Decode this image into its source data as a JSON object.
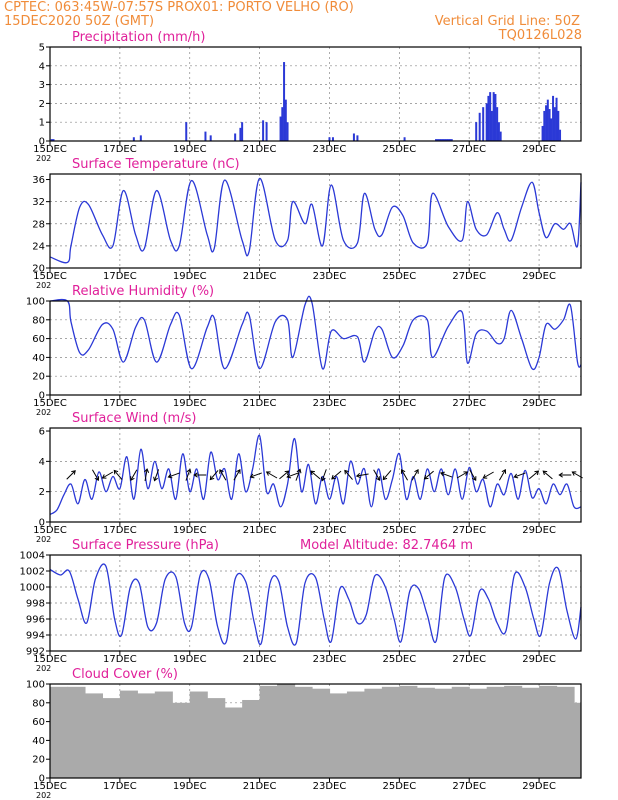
{
  "header": {
    "line1_left": "CPTEC:   063:45W-07:57S   PROX01: PORTO VELHO (RO)",
    "line2_left": "15DEC2020 50Z (GMT)",
    "line2_right": "Vertical Grid Line: 50Z",
    "line3_right": "TQ0126L028"
  },
  "colors": {
    "header": "#f08c3a",
    "title": "#e0209a",
    "line": "#2b39d6",
    "cloud": "#aaaaaa",
    "grid": "#888888"
  },
  "x_axis": {
    "tick_labels": [
      "15DEC",
      "17DEC",
      "19DEC",
      "21DEC",
      "23DEC",
      "25DEC",
      "27DEC",
      "29DEC"
    ],
    "tick_days": [
      0,
      2,
      4,
      6,
      8,
      10,
      12,
      14
    ],
    "year_stub": "202",
    "xlim_days": [
      0,
      15.2
    ]
  },
  "chart_data": [
    {
      "type": "bar",
      "title": "Precipitation (mm/h)",
      "ylim": [
        0,
        5
      ],
      "yticks": [
        "0",
        "1",
        "2",
        "3",
        "4",
        "5"
      ],
      "x_days": [
        0.05,
        0.1,
        2.4,
        2.6,
        3.9,
        4.45,
        4.6,
        5.3,
        5.45,
        5.5,
        6.1,
        6.2,
        6.6,
        6.65,
        6.7,
        6.75,
        6.8,
        8.0,
        8.1,
        8.7,
        8.8,
        10.15,
        11.05,
        11.1,
        11.15,
        11.2,
        11.25,
        11.3,
        11.35,
        11.4,
        11.45,
        11.5,
        12.2,
        12.3,
        12.4,
        12.5,
        12.55,
        12.6,
        12.65,
        12.7,
        12.75,
        12.8,
        12.85,
        12.9,
        14.1,
        14.15,
        14.2,
        14.25,
        14.3,
        14.35,
        14.4,
        14.45,
        14.5,
        14.55,
        14.6
      ],
      "values": [
        0.1,
        0.1,
        0.2,
        0.3,
        1.0,
        0.5,
        0.3,
        0.4,
        0.7,
        1.0,
        1.1,
        1.0,
        1.3,
        1.8,
        4.2,
        2.2,
        1.0,
        0.2,
        0.2,
        0.4,
        0.3,
        0.2,
        0.1,
        0.1,
        0.1,
        0.1,
        0.1,
        0.1,
        0.1,
        0.1,
        0.1,
        0.1,
        1.0,
        1.5,
        1.8,
        2.0,
        2.4,
        2.6,
        1.6,
        2.6,
        2.5,
        1.8,
        1.0,
        0.5,
        0.8,
        1.6,
        1.9,
        2.2,
        1.7,
        1.2,
        2.4,
        1.8,
        2.3,
        1.6,
        0.6
      ]
    },
    {
      "type": "line",
      "title": "Surface Temperature (nC)",
      "ylim": [
        20,
        37
      ],
      "yticks": [
        "20",
        "24",
        "28",
        "32",
        "36"
      ],
      "x_days": [
        0,
        0.5,
        0.6,
        0.85,
        1.1,
        1.5,
        1.8,
        2.1,
        2.45,
        2.7,
        3.05,
        3.45,
        3.7,
        4.05,
        4.5,
        4.7,
        5.0,
        5.5,
        5.7,
        6.0,
        6.45,
        6.8,
        6.95,
        7.3,
        7.5,
        7.8,
        8.05,
        8.4,
        8.8,
        9.0,
        9.3,
        9.5,
        9.8,
        10.1,
        10.4,
        10.8,
        10.95,
        11.4,
        11.8,
        11.95,
        12.2,
        12.5,
        12.8,
        13.0,
        13.2,
        13.5,
        13.8,
        14.0,
        14.2,
        14.45,
        14.7,
        14.9,
        15.1,
        15.2
      ],
      "values": [
        22,
        21,
        24,
        31,
        31.5,
        26,
        24,
        34,
        26,
        23.5,
        34,
        25,
        24,
        35.8,
        26,
        23.5,
        35.9,
        25,
        23,
        36.2,
        25,
        25,
        32,
        28,
        31.5,
        24,
        35,
        25,
        24.5,
        33.5,
        27,
        26,
        31,
        29.5,
        24.5,
        24.5,
        33.5,
        27.5,
        25,
        32,
        27,
        26,
        30,
        27,
        25,
        31,
        35.5,
        30,
        25.5,
        28,
        27,
        28,
        24,
        35.5
      ]
    },
    {
      "type": "line",
      "title": "Relative Humidity (%)",
      "ylim": [
        0,
        100
      ],
      "yticks": [
        "0",
        "20",
        "40",
        "60",
        "80",
        "100"
      ],
      "x_days": [
        0,
        0.5,
        0.6,
        0.85,
        1.1,
        1.5,
        1.8,
        2.1,
        2.45,
        2.7,
        3.05,
        3.45,
        3.7,
        4.05,
        4.5,
        4.7,
        5.0,
        5.5,
        5.7,
        6.0,
        6.45,
        6.8,
        6.95,
        7.3,
        7.5,
        7.8,
        8.05,
        8.4,
        8.8,
        9.0,
        9.3,
        9.5,
        9.8,
        10.1,
        10.4,
        10.8,
        10.95,
        11.4,
        11.8,
        11.95,
        12.2,
        12.5,
        12.8,
        13.0,
        13.2,
        13.5,
        13.8,
        14.0,
        14.2,
        14.45,
        14.7,
        14.9,
        15.1,
        15.2
      ],
      "values": [
        100,
        100,
        78,
        45,
        48,
        75,
        70,
        35,
        72,
        80,
        35,
        75,
        85,
        28,
        72,
        82,
        28,
        75,
        85,
        28,
        78,
        80,
        40,
        96,
        98,
        28,
        68,
        60,
        62,
        35,
        68,
        70,
        40,
        52,
        80,
        80,
        40,
        73,
        88,
        34,
        65,
        68,
        55,
        60,
        90,
        60,
        28,
        40,
        75,
        70,
        80,
        95,
        35,
        32
      ]
    },
    {
      "type": "line",
      "title": "Surface Wind (m/s)",
      "ylim": [
        0,
        6.2
      ],
      "yticks": [
        "0",
        "2",
        "4",
        "6"
      ],
      "x_days": [
        0,
        0.2,
        0.4,
        0.6,
        0.8,
        1.0,
        1.2,
        1.4,
        1.6,
        1.8,
        2.0,
        2.2,
        2.4,
        2.6,
        2.8,
        3.0,
        3.2,
        3.4,
        3.6,
        3.8,
        4.0,
        4.2,
        4.4,
        4.6,
        4.8,
        5.0,
        5.2,
        5.4,
        5.6,
        5.8,
        6.0,
        6.2,
        6.4,
        6.6,
        6.8,
        7.0,
        7.2,
        7.4,
        7.6,
        7.8,
        8.0,
        8.2,
        8.4,
        8.6,
        8.8,
        9.0,
        9.2,
        9.4,
        9.6,
        9.8,
        10.0,
        10.2,
        10.4,
        10.6,
        10.8,
        11.0,
        11.2,
        11.4,
        11.6,
        11.8,
        12.0,
        12.2,
        12.4,
        12.6,
        12.8,
        13.0,
        13.2,
        13.4,
        13.6,
        13.8,
        14.0,
        14.2,
        14.4,
        14.6,
        14.8,
        15.0,
        15.2
      ],
      "values": [
        0.5,
        0.8,
        1.8,
        2.5,
        1.2,
        2.8,
        1.5,
        3.3,
        2.0,
        3.0,
        2.2,
        4.3,
        1.5,
        4.8,
        2.2,
        4.0,
        2.2,
        3.5,
        1.5,
        4.5,
        2.0,
        3.5,
        1.5,
        4.6,
        2.8,
        3.5,
        1.5,
        4.5,
        2.0,
        3.5,
        5.7,
        2.0,
        2.5,
        1.0,
        2.5,
        5.5,
        2.0,
        3.8,
        1.2,
        3.0,
        1.5,
        3.0,
        1.2,
        4.0,
        2.5,
        3.5,
        1.0,
        3.5,
        1.5,
        2.8,
        4.5,
        1.5,
        3.0,
        1.5,
        3.5,
        2.0,
        3.5,
        1.8,
        3.5,
        1.5,
        3.6,
        2.0,
        2.8,
        1.0,
        2.5,
        1.8,
        3.2,
        1.5,
        3.4,
        1.6,
        2.2,
        1.2,
        2.5,
        1.8,
        2.5,
        1.0,
        1.0
      ]
    },
    {
      "type": "line",
      "title": "Surface Pressure (hPa)",
      "annotation": "Model Altitude: 82.7464 m",
      "ylim": [
        992,
        1004
      ],
      "yticks": [
        "992",
        "994",
        "996",
        "998",
        "1000",
        "1002",
        "1004"
      ],
      "x_days": [
        0,
        0.3,
        0.55,
        0.8,
        1.05,
        1.3,
        1.6,
        1.85,
        2.05,
        2.3,
        2.55,
        2.8,
        3.05,
        3.3,
        3.6,
        3.85,
        4.05,
        4.3,
        4.55,
        4.8,
        5.05,
        5.3,
        5.6,
        5.85,
        6.05,
        6.3,
        6.55,
        6.8,
        7.05,
        7.3,
        7.6,
        7.85,
        8.05,
        8.3,
        8.55,
        8.8,
        9.05,
        9.3,
        9.6,
        9.85,
        10.05,
        10.3,
        10.55,
        10.8,
        11.05,
        11.3,
        11.6,
        11.85,
        12.05,
        12.3,
        12.55,
        12.8,
        13.05,
        13.3,
        13.6,
        13.85,
        14.05,
        14.3,
        14.55,
        14.8,
        15.05,
        15.2
      ],
      "values": [
        1002.2,
        1001.5,
        1002.0,
        998.5,
        995.5,
        1001.0,
        1002.6,
        996.0,
        994.0,
        1000.0,
        1000.5,
        995.0,
        995.5,
        1001.0,
        1001.3,
        995.5,
        995.0,
        1001.5,
        1001.0,
        995.0,
        993.2,
        1001.0,
        1000.7,
        995.5,
        993.0,
        1000.5,
        1000.7,
        995.0,
        993.0,
        1000.5,
        1001.2,
        996.0,
        993.2,
        999.8,
        998.5,
        995.5,
        996.5,
        1001.4,
        1000.0,
        996.0,
        993.2,
        999.5,
        999.8,
        996.5,
        993.2,
        1001.2,
        1000.0,
        996.0,
        994.0,
        999.5,
        998.5,
        995.5,
        994.5,
        1001.6,
        1000.0,
        996.0,
        994.0,
        1000.5,
        1002.3,
        997.0,
        993.5,
        997.5
      ]
    },
    {
      "type": "bar",
      "title": "Cloud Cover (%)",
      "ylim": [
        0,
        100
      ],
      "yticks": [
        "0",
        "20",
        "40",
        "60",
        "80",
        "100"
      ],
      "x_days": [
        0.0,
        0.5,
        1.0,
        1.5,
        2.0,
        2.5,
        3.0,
        3.5,
        4.0,
        4.5,
        5.0,
        5.5,
        6.0,
        6.5,
        7.0,
        7.5,
        8.0,
        8.5,
        9.0,
        9.5,
        10.0,
        10.5,
        11.0,
        11.5,
        12.0,
        12.5,
        13.0,
        13.5,
        14.0,
        14.5,
        15.0
      ],
      "values": [
        97,
        97,
        90,
        85,
        93,
        90,
        92,
        80,
        92,
        85,
        75,
        83,
        98,
        100,
        97,
        95,
        90,
        92,
        95,
        97,
        98,
        96,
        95,
        97,
        95,
        97,
        98,
        96,
        98,
        97,
        80
      ]
    }
  ],
  "wind_arrows": {
    "y_ms": 3.1,
    "x_days": [
      0.6,
      1.3,
      1.65,
      1.95,
      2.4,
      2.75,
      3.05,
      3.55,
      3.95,
      4.3,
      4.7,
      4.95,
      5.35,
      5.9,
      6.35,
      6.7,
      6.95,
      7.1,
      7.6,
      7.85,
      8.2,
      8.55,
      8.95,
      9.35,
      9.65,
      10.15,
      10.45,
      10.85,
      11.35,
      11.8,
      12.1,
      12.55,
      12.95,
      13.45,
      13.85,
      14.25,
      14.75,
      15.1
    ],
    "angle_deg": [
      45,
      300,
      210,
      130,
      240,
      80,
      250,
      200,
      70,
      180,
      230,
      120,
      60,
      200,
      150,
      40,
      200,
      70,
      140,
      250,
      220,
      130,
      190,
      300,
      230,
      120,
      60,
      220,
      160,
      30,
      300,
      210,
      60,
      200,
      40,
      140,
      180,
      150
    ]
  }
}
